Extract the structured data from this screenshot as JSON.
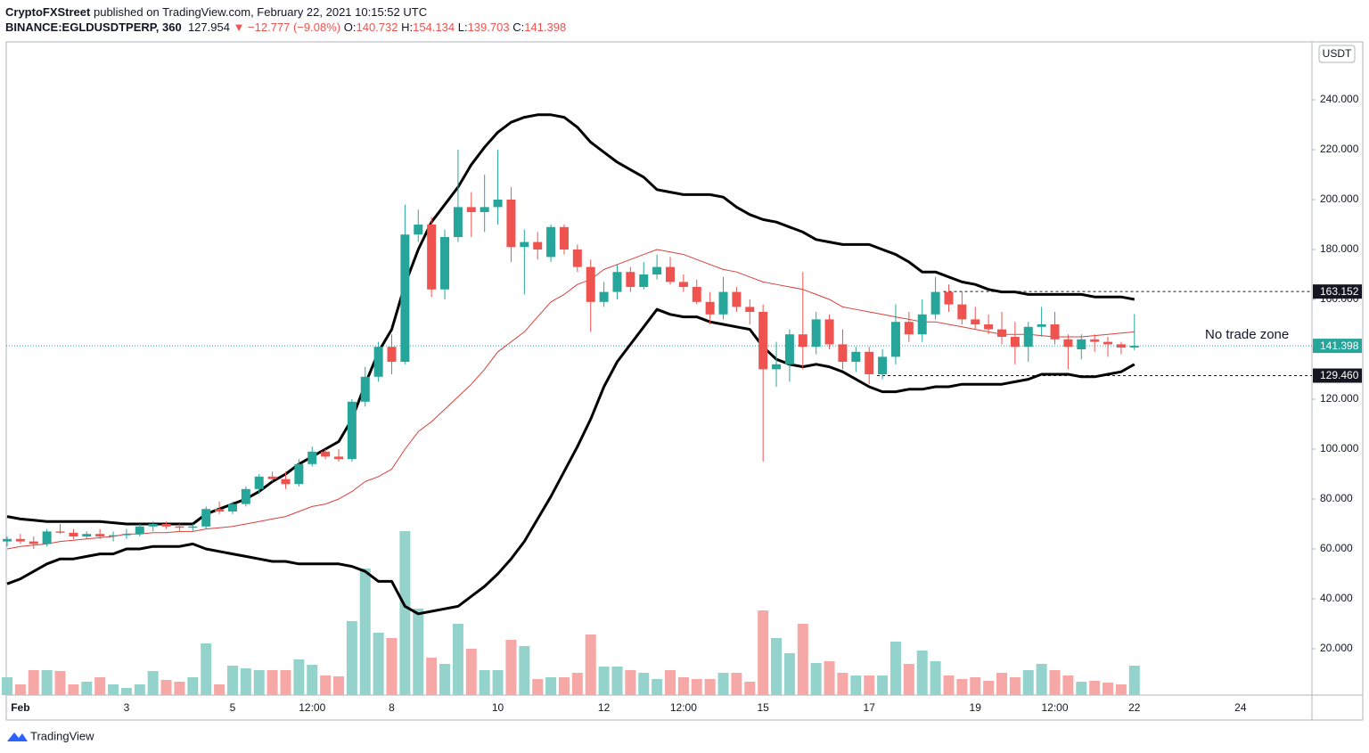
{
  "header": {
    "publisher": "CryptoFXStreet",
    "published": "published on TradingView.com, February 22, 2021 10:15:52 UTC",
    "symbol": "BINANCE:EGLDUSDTPERP, 360",
    "last": "127.954",
    "change": "▼ −12.777 (−9.08%)",
    "ohlc": [
      {
        "label": "O:",
        "value": "140.732"
      },
      {
        "label": "H:",
        "value": "154.134"
      },
      {
        "label": "L:",
        "value": "139.703"
      },
      {
        "label": "C:",
        "value": "141.398"
      }
    ]
  },
  "footer": {
    "brand": "TradingView"
  },
  "chart_data": {
    "type": "candlestick",
    "currency": "USDT",
    "categories": [
      null,
      "Feb",
      null,
      null,
      null,
      null,
      null,
      null,
      null,
      "3",
      null,
      null,
      null,
      null,
      null,
      null,
      null,
      "5",
      null,
      null,
      null,
      null,
      null,
      "12:00",
      null,
      null,
      null,
      null,
      null,
      "8",
      null,
      null,
      null,
      null,
      null,
      null,
      null,
      "10",
      null,
      null,
      null,
      null,
      null,
      null,
      null,
      "12",
      null,
      null,
      null,
      null,
      null,
      "12:00",
      null,
      null,
      null,
      null,
      null,
      "15",
      null,
      null,
      null,
      null,
      null,
      null,
      null,
      "17",
      null,
      null,
      null,
      null,
      null,
      null,
      null,
      "19",
      null,
      null,
      null,
      null,
      null,
      "12:00",
      null,
      null,
      null,
      null,
      null,
      "22",
      null,
      null,
      null,
      null,
      null,
      null,
      null,
      "24"
    ],
    "open": [
      63,
      64,
      63,
      62,
      67,
      66.5,
      65,
      66,
      65,
      65.5,
      66,
      69,
      70,
      69,
      68.5,
      69,
      76,
      75,
      78,
      84,
      89,
      88,
      86,
      94,
      99,
      97,
      96,
      119,
      129,
      141,
      135,
      186,
      190,
      164,
      185,
      197,
      195,
      197,
      200,
      181,
      183,
      177,
      189,
      180,
      173,
      159,
      163,
      171,
      165,
      170,
      173,
      167,
      165,
      159,
      154,
      163,
      157,
      155,
      132,
      134,
      146,
      141,
      152,
      142,
      135,
      139,
      130,
      137,
      151,
      146,
      154,
      163,
      158,
      152,
      150,
      148,
      145,
      141,
      149,
      150,
      144,
      140,
      144,
      143,
      142,
      140.732,
      null,
      null,
      null,
      null,
      null,
      null,
      null,
      null
    ],
    "high": [
      65,
      66,
      65,
      68,
      70,
      68,
      67,
      68,
      67,
      68,
      70,
      71,
      71,
      70,
      70,
      77,
      79,
      79,
      85,
      90,
      91,
      91,
      96,
      101,
      100,
      100,
      120,
      133,
      143,
      146,
      198,
      196,
      193,
      188,
      220,
      203,
      210,
      220,
      205,
      188,
      187,
      190,
      190,
      182,
      176,
      167,
      174,
      173,
      175,
      178,
      177,
      170,
      168,
      163,
      169,
      165,
      160,
      158,
      143,
      148,
      171,
      155,
      154,
      148,
      141,
      141,
      140,
      158,
      155,
      160,
      169,
      166,
      163,
      157,
      154,
      155,
      151,
      151,
      157,
      155,
      146,
      146,
      146,
      145,
      143,
      154.134,
      null,
      null,
      null,
      null,
      null,
      null,
      null,
      null
    ],
    "low": [
      61,
      62,
      60,
      61,
      66,
      64,
      64,
      64,
      63,
      64,
      65,
      67,
      68,
      67,
      67,
      68,
      74,
      74,
      77,
      82,
      87,
      84,
      85,
      93,
      96,
      95,
      95,
      117,
      127,
      130,
      134,
      183,
      161,
      160,
      183,
      185,
      187,
      190,
      175,
      162,
      176,
      175,
      178,
      171,
      147,
      157,
      160,
      163,
      164,
      168,
      166,
      163,
      158,
      150,
      152,
      155,
      150,
      95,
      125,
      127,
      132,
      138,
      140,
      132,
      131,
      126,
      128,
      134,
      143,
      143,
      152,
      155,
      150,
      148,
      146,
      142,
      134,
      135,
      145,
      142,
      132,
      136,
      139,
      137,
      138,
      139.703,
      null,
      null,
      null,
      null,
      null,
      null,
      null,
      null
    ],
    "close": [
      64,
      63,
      62,
      67,
      66.5,
      65,
      66,
      65,
      65.5,
      66,
      69,
      70,
      69,
      68.5,
      69,
      76,
      75,
      78,
      84,
      89,
      88,
      86,
      94,
      99,
      97,
      96,
      119,
      129,
      141,
      135,
      186,
      190,
      164,
      185,
      197,
      195,
      197,
      200,
      181,
      183,
      180,
      189,
      180,
      173,
      159,
      163,
      171,
      165,
      170,
      173,
      167,
      165,
      159,
      154,
      163,
      157,
      155,
      132,
      134,
      146,
      141,
      152,
      142,
      135,
      139,
      130,
      137,
      151,
      146,
      154,
      163,
      158,
      152,
      150,
      148,
      145,
      141,
      149,
      150,
      144,
      141,
      144,
      143,
      142,
      140.7,
      141.398,
      null,
      null,
      null,
      null,
      null,
      null,
      null,
      null
    ],
    "volume": [
      20,
      12,
      28,
      28,
      27,
      12,
      15,
      20,
      12,
      8,
      12,
      27,
      17,
      15,
      20,
      58,
      12,
      33,
      30,
      28,
      28,
      28,
      40,
      34,
      22,
      21,
      83,
      142,
      70,
      64,
      184,
      97,
      42,
      35,
      80,
      52,
      28,
      28,
      62,
      55,
      18,
      20,
      20,
      25,
      68,
      32,
      32,
      28,
      25,
      18,
      28,
      20,
      18,
      18,
      25,
      25,
      15,
      95,
      64,
      47,
      80,
      36,
      38,
      25,
      22,
      22,
      22,
      60,
      35,
      50,
      38,
      22,
      18,
      20,
      16,
      25,
      20,
      28,
      35,
      28,
      22,
      15,
      16,
      14,
      12,
      33,
      null,
      null,
      null,
      null,
      null,
      null,
      null,
      null
    ],
    "bands": {
      "upper": [
        73,
        72,
        71.5,
        71,
        71,
        71,
        71,
        71,
        70.5,
        70,
        70,
        70,
        70,
        70,
        70,
        74,
        76,
        78,
        80,
        83,
        87,
        90,
        94,
        97,
        100,
        103,
        112,
        126,
        139,
        148,
        166,
        180,
        191,
        198,
        205,
        214,
        221,
        227,
        231,
        233,
        234,
        234,
        233,
        229,
        223,
        219,
        215,
        212,
        209,
        204,
        203,
        202,
        202,
        202,
        201,
        197,
        194,
        192,
        191,
        189,
        187,
        184,
        183,
        182,
        182,
        182,
        180,
        178,
        175,
        171,
        171,
        169,
        167,
        166,
        164,
        163,
        163,
        162,
        162,
        162,
        162,
        162,
        161,
        161,
        161,
        160,
        null,
        null,
        null,
        null,
        null,
        null,
        null,
        null
      ],
      "middle": [
        60,
        61,
        61.5,
        62,
        63,
        63.5,
        64,
        64.5,
        65,
        66,
        66,
        66.5,
        66.5,
        67,
        67,
        68,
        68.5,
        69,
        70,
        71,
        72,
        73,
        75,
        77,
        78,
        80,
        83,
        87,
        89,
        92,
        100,
        107,
        111,
        116,
        121,
        126,
        132,
        139,
        143,
        147,
        153,
        159,
        162,
        166,
        168,
        172,
        174,
        176,
        178,
        180,
        179,
        178,
        176,
        174,
        172,
        171,
        169,
        167,
        166,
        165,
        164,
        162,
        160,
        157,
        156,
        155,
        154,
        153,
        152,
        151,
        151,
        150,
        149,
        148,
        147,
        146,
        146,
        146,
        145.5,
        145,
        145,
        145,
        145.5,
        146,
        146.5,
        147,
        null,
        null,
        null,
        null,
        null,
        null,
        null,
        null
      ],
      "lower": [
        46,
        48,
        51,
        54,
        56,
        56,
        57,
        58,
        58,
        60,
        60,
        61,
        61,
        61,
        62,
        60,
        59,
        58,
        57,
        56,
        55,
        55,
        54,
        54,
        54,
        54,
        53,
        51,
        47,
        47,
        37,
        34,
        35,
        36,
        37,
        41,
        45,
        50,
        56,
        63,
        72,
        81,
        91,
        101,
        112,
        125,
        135,
        142,
        149,
        156,
        154,
        153,
        153,
        151,
        150,
        149,
        148,
        141,
        136,
        134,
        133,
        134,
        133,
        131,
        128,
        125,
        123,
        123,
        124,
        124,
        125,
        125,
        126,
        126,
        126,
        126,
        127,
        128,
        130,
        130,
        130,
        129,
        129,
        130,
        131,
        134,
        null,
        null,
        null,
        null,
        null,
        null,
        null,
        null
      ]
    },
    "ylim": [
      1.43,
      263.21
    ],
    "yticks": [
      {
        "value": 20,
        "label": "20.000"
      },
      {
        "value": 40,
        "label": "40.000"
      },
      {
        "value": 60,
        "label": "60.000"
      },
      {
        "value": 80,
        "label": "80.000"
      },
      {
        "value": 100,
        "label": "100.000"
      },
      {
        "value": 120,
        "label": "120.000"
      },
      {
        "value": 140,
        "label": "140.000"
      },
      {
        "value": 160,
        "label": "160.000"
      },
      {
        "value": 180,
        "label": "180.000"
      },
      {
        "value": 200,
        "label": "200.000"
      },
      {
        "value": 220,
        "label": "220.000"
      },
      {
        "value": 240,
        "label": "240.000"
      }
    ],
    "levels": [
      {
        "value": 163.152,
        "label": "163.152",
        "color": "#131722",
        "style": "dashed"
      },
      {
        "value": 141.398,
        "label": "141.398",
        "color": "#26a69a",
        "style": "dotted"
      },
      {
        "value": 129.46,
        "label": "129.460",
        "color": "#131722",
        "style": "dashed"
      }
    ],
    "annotation": "No trade zone",
    "up_color": "#26a69a",
    "down_color": "#ef5350",
    "up_volume_color": "#94d3cc",
    "down_volume_color": "#f6a8a6",
    "band_color": "#000000",
    "middle_color": "#d9403c"
  }
}
